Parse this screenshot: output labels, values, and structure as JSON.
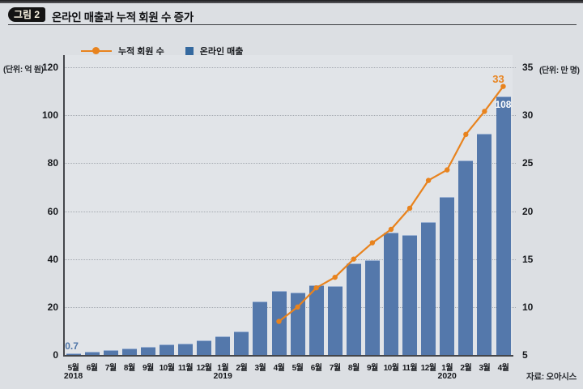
{
  "figure": {
    "tag": "그림 2",
    "title": "온라인 매출과 누적 회원 수 증가",
    "source": "자료: 오아시스"
  },
  "legend": {
    "line_label": "누적 회원 수",
    "bar_label": "온라인 매출"
  },
  "colors": {
    "bar": "#5478ab",
    "line": "#e8831e",
    "axis": "#44464b",
    "background": "#dcdfe3"
  },
  "chart_data": {
    "type": "bar+line",
    "title": "온라인 매출과 누적 회원 수 증가",
    "categories": [
      "5월",
      "6월",
      "7월",
      "8월",
      "9월",
      "10월",
      "11월",
      "12월",
      "1월",
      "2월",
      "3월",
      "4월",
      "5월",
      "6월",
      "7월",
      "8월",
      "9월",
      "10월",
      "11월",
      "12월",
      "1월",
      "2월",
      "3월",
      "4월"
    ],
    "year_labels": [
      {
        "label": "2018",
        "slot": 0
      },
      {
        "label": "2019",
        "slot": 8
      },
      {
        "label": "2020",
        "slot": 20
      }
    ],
    "left_axis": {
      "unit": "(단위: 억 원)",
      "ticks": [
        0,
        20,
        40,
        60,
        80,
        100,
        120
      ],
      "lim": [
        0,
        120
      ]
    },
    "right_axis": {
      "unit": "(단위: 만 명)",
      "ticks": [
        5,
        10,
        15,
        20,
        25,
        30,
        35
      ],
      "lim": [
        5,
        35
      ]
    },
    "grid": "dotted-horizontal",
    "legend_position": "top-left",
    "series": [
      {
        "name": "온라인 매출",
        "type": "bar",
        "axis": "left",
        "color": "#5478ab",
        "values": [
          0.7,
          1.4,
          2.1,
          2.7,
          3.4,
          4.3,
          4.8,
          6,
          7.9,
          9.7,
          22.3,
          26.8,
          26,
          29.2,
          28.8,
          38.2,
          39.6,
          51.1,
          50.2,
          55.6,
          66.1,
          81.1,
          92.4,
          108
        ]
      },
      {
        "name": "누적 회원 수",
        "type": "line",
        "axis": "right",
        "color": "#e8831e",
        "start_index": 11,
        "values": [
          8.5,
          10,
          12,
          13.1,
          15,
          16.7,
          18.1,
          20.3,
          23.2,
          24.3,
          28,
          30.4,
          33
        ]
      }
    ],
    "annotations": [
      {
        "text": "0.7",
        "series": "bar",
        "index": 0,
        "placement": "above",
        "color": "#4f76a8"
      },
      {
        "text": "108",
        "series": "bar",
        "index": 23,
        "placement": "inside-top",
        "color": "#ffffff"
      },
      {
        "text": "33",
        "series": "line",
        "point": 12,
        "placement": "above",
        "color": "#e8831e"
      }
    ]
  }
}
